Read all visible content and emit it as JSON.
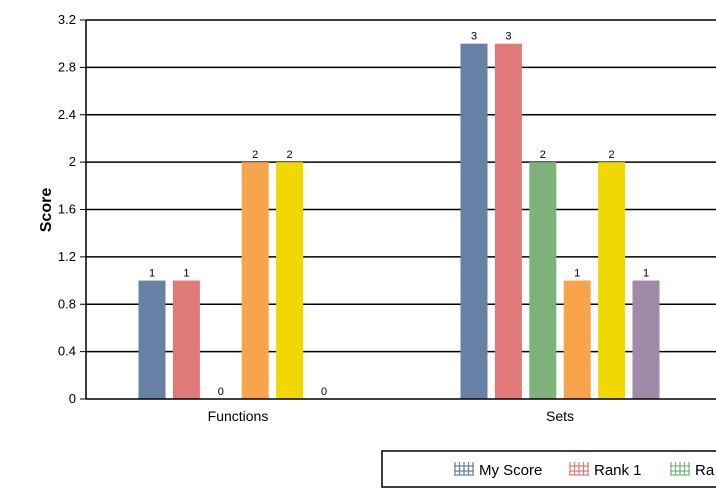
{
  "chart_data": {
    "type": "bar",
    "ylabel": "Score",
    "ylim": [
      0,
      3.2
    ],
    "yticks": [
      "0",
      "0.4",
      "0.8",
      "1.2",
      "1.6",
      "2",
      "2.4",
      "2.8",
      "3.2"
    ],
    "grid": true,
    "legend_position": "bottom",
    "categories": [
      "Functions",
      "Sets"
    ],
    "series": [
      {
        "name": "My Score",
        "color": "#6680a6",
        "values": [
          1,
          3
        ]
      },
      {
        "name": "Rank 1",
        "color": "#e07a78",
        "values": [
          1,
          3
        ]
      },
      {
        "name": "Ra",
        "color": "#7db37a",
        "values": [
          0,
          2
        ]
      },
      {
        "color": "#f7a44c",
        "values": [
          2,
          1
        ]
      },
      {
        "color": "#f0d800",
        "values": [
          2,
          2
        ]
      },
      {
        "color": "#a08aa8",
        "values": [
          0,
          1
        ]
      }
    ]
  }
}
